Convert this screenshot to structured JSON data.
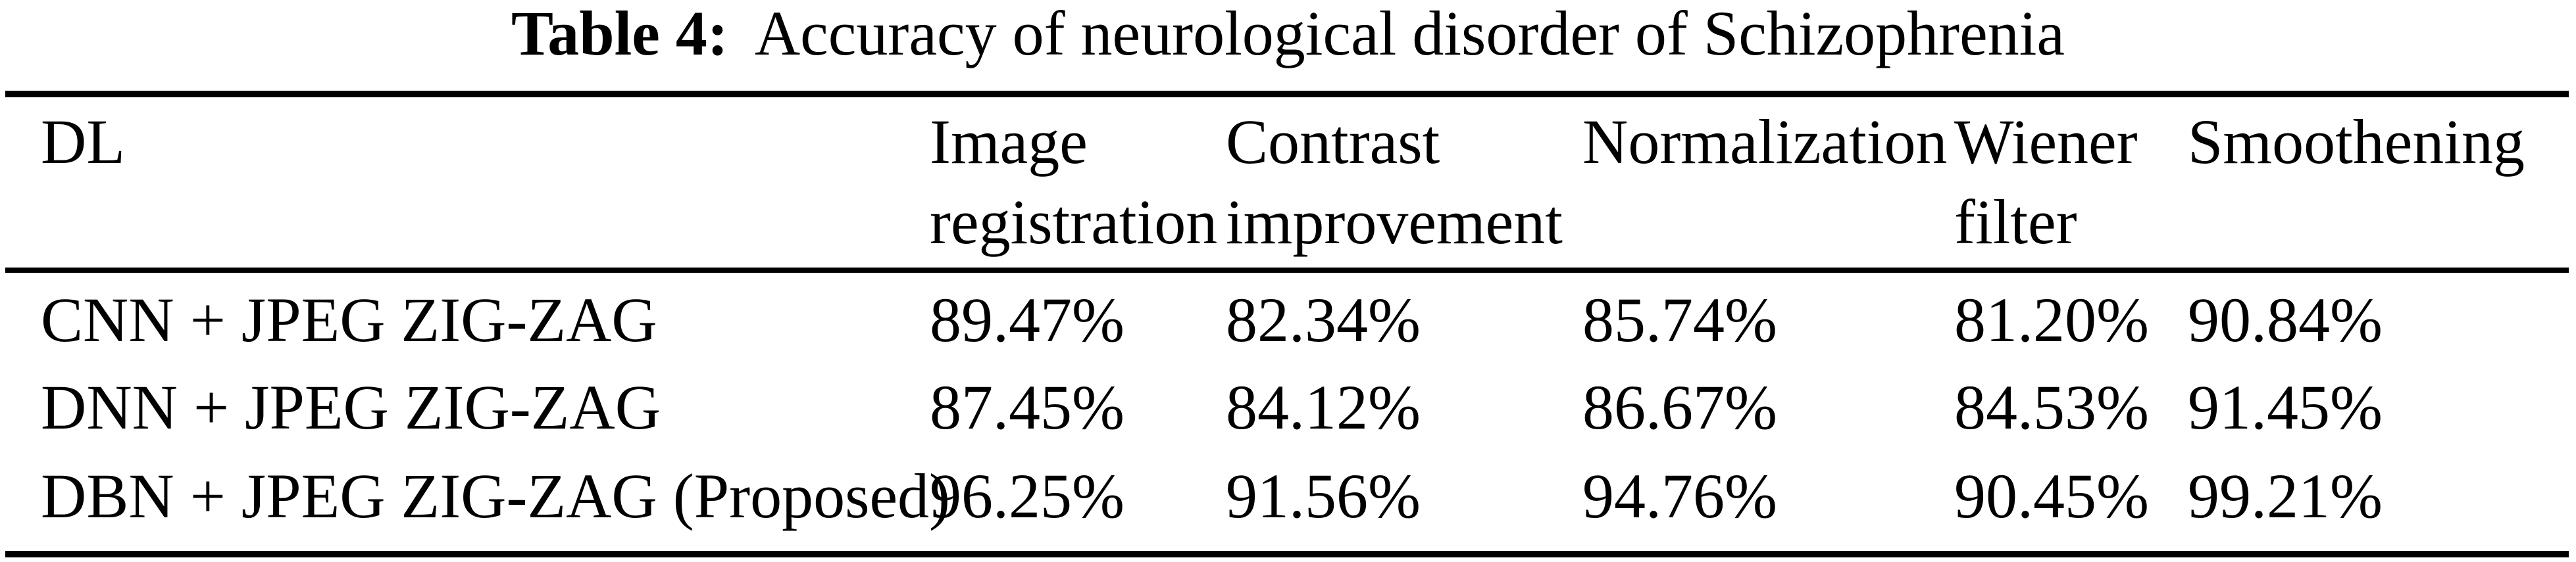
{
  "title": {
    "label": "Table 4:",
    "text": "Accuracy of neurological disorder of Schizophrenia"
  },
  "colors": {
    "text": "#000000",
    "background": "#ffffff",
    "rule": "#000000"
  },
  "table": {
    "columns": [
      {
        "header": "DL"
      },
      {
        "header": "Image registration"
      },
      {
        "header": "Contrast improvement"
      },
      {
        "header": "Normalization"
      },
      {
        "header": "Wiener filter"
      },
      {
        "header": "Smoothening"
      }
    ],
    "rows": [
      {
        "model": "CNN + JPEG ZIG-ZAG",
        "values": [
          "89.47%",
          "82.34%",
          "85.74%",
          "81.20%",
          "90.84%"
        ]
      },
      {
        "model": "DNN + JPEG ZIG-ZAG",
        "values": [
          "87.45%",
          "84.12%",
          "86.67%",
          "84.53%",
          "91.45%"
        ]
      },
      {
        "model": "DBN + JPEG ZIG-ZAG (Proposed)",
        "values": [
          "96.25%",
          "91.56%",
          "94.76%",
          "90.45%",
          "99.21%"
        ]
      }
    ]
  }
}
